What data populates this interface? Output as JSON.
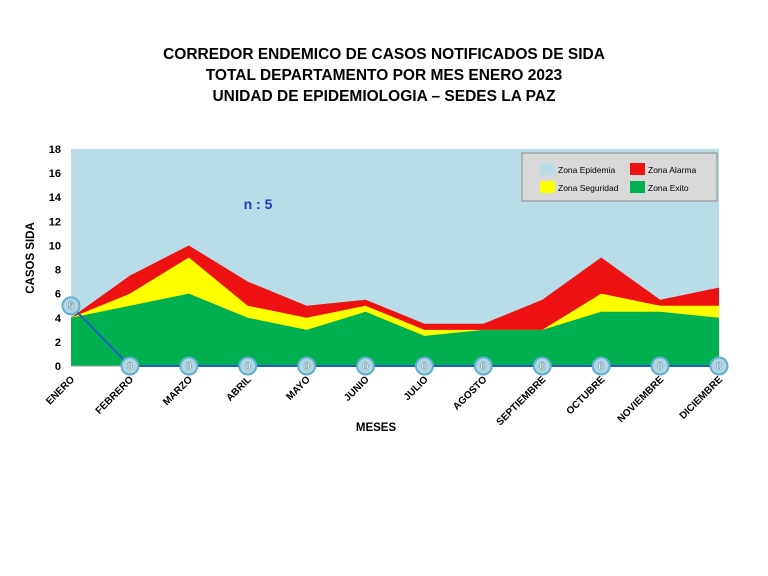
{
  "title_lines": [
    "CORREDOR  ENDEMICO  DE CASOS NOTIFICADOS  DE SIDA",
    "TOTAL DEPARTAMENTO  POR MES ENERO 2023",
    "UNIDAD  DE EPIDEMIOLOGIA  – SEDES LA PAZ"
  ],
  "annotation": "n : 5",
  "colors": {
    "epidemia": "#b8dde6",
    "alarma": "#ee1111",
    "seguridad": "#ffff00",
    "exito": "#00b050",
    "cases_line": "#1f5fbf",
    "marker_fill": "#b0d6e2",
    "marker_stroke": "#5fb0d0"
  },
  "chart_data": {
    "type": "area",
    "xlabel": "MESES",
    "ylabel": "CASOS SIDA",
    "ylim": [
      0,
      18
    ],
    "yticks": [
      0,
      2,
      4,
      6,
      8,
      10,
      12,
      14,
      16,
      18
    ],
    "categories": [
      "ENERO",
      "FEBRERO",
      "MARZO",
      "ABRIL",
      "MAYO",
      "JUNIO",
      "JULIO",
      "AGOSTO",
      "SEPTIEMBRE",
      "OCTUBRE",
      "NOVIEMBRE",
      "DICIEMBRE"
    ],
    "legend_position": "top-right",
    "series": [
      {
        "name": "Zona Exito",
        "key": "exito",
        "values": [
          4,
          5,
          6,
          4,
          3,
          4.5,
          2.5,
          3,
          3,
          4.5,
          4.5,
          4
        ]
      },
      {
        "name": "Zona Seguridad",
        "key": "seguridad",
        "values": [
          4,
          6,
          9,
          5,
          4,
          5,
          3,
          3,
          3,
          6,
          5,
          5
        ]
      },
      {
        "name": "Zona Alarma",
        "key": "alarma",
        "values": [
          4,
          7.5,
          10,
          7,
          5,
          5.5,
          3.5,
          3.5,
          5.5,
          9,
          5.5,
          6.5
        ]
      },
      {
        "name": "Zona Epidemia",
        "key": "epidemia",
        "values": [
          18,
          18,
          18,
          18,
          18,
          18,
          18,
          18,
          18,
          18,
          18,
          18
        ]
      }
    ],
    "cases": {
      "values": [
        5,
        0,
        0,
        0,
        0,
        0,
        0,
        0,
        0,
        0,
        0,
        0
      ],
      "labels": [
        "5",
        "0",
        "0",
        "0",
        "0",
        "0",
        "0",
        "0",
        "0",
        "0",
        "0",
        "0"
      ]
    }
  }
}
